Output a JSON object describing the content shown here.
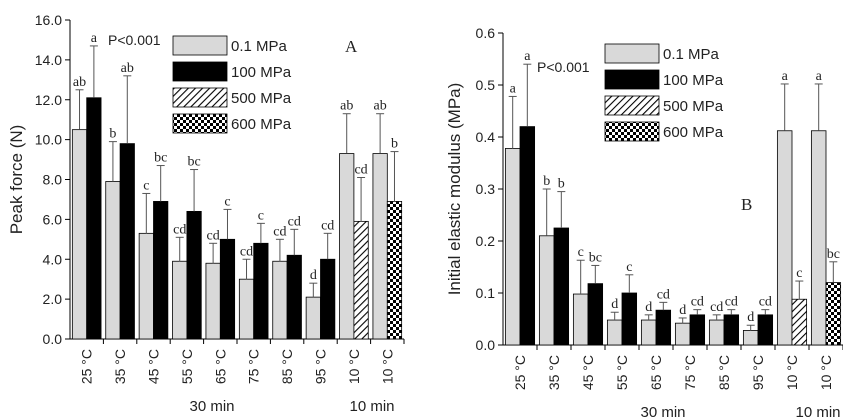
{
  "chart_data": [
    {
      "type": "bar",
      "panel_label": "A",
      "p_value": "P<0.001",
      "ylabel": "Peak force (N)",
      "ylim": [
        0,
        16
      ],
      "yticks": [
        "0.0",
        "2.0",
        "4.0",
        "6.0",
        "8.0",
        "10.0",
        "12.0",
        "14.0",
        "16.0"
      ],
      "categories": [
        "25 °C",
        "35 °C",
        "45 °C",
        "55 °C",
        "65 °C",
        "75 °C",
        "85 °C",
        "95 °C",
        "10 °C",
        "10 °C"
      ],
      "groups": [
        {
          "label": "30 min"
        },
        {
          "label": "10 min"
        }
      ],
      "legend": [
        "0.1 MPa",
        "100 MPa",
        "500 MPa",
        "600 MPa"
      ],
      "bars": [
        {
          "cat": 0,
          "series": 0,
          "value": 10.5,
          "err": 2.0,
          "sig": "ab"
        },
        {
          "cat": 0,
          "series": 1,
          "value": 12.1,
          "err": 2.6,
          "sig": "a"
        },
        {
          "cat": 1,
          "series": 0,
          "value": 7.9,
          "err": 2.0,
          "sig": "b"
        },
        {
          "cat": 1,
          "series": 1,
          "value": 9.8,
          "err": 3.4,
          "sig": "ab"
        },
        {
          "cat": 2,
          "series": 0,
          "value": 5.3,
          "err": 2.0,
          "sig": "c"
        },
        {
          "cat": 2,
          "series": 1,
          "value": 6.9,
          "err": 1.8,
          "sig": "bc"
        },
        {
          "cat": 3,
          "series": 0,
          "value": 3.9,
          "err": 1.2,
          "sig": "cd"
        },
        {
          "cat": 3,
          "series": 1,
          "value": 6.4,
          "err": 2.1,
          "sig": "bc"
        },
        {
          "cat": 4,
          "series": 0,
          "value": 3.8,
          "err": 1.0,
          "sig": "cd"
        },
        {
          "cat": 4,
          "series": 1,
          "value": 5.0,
          "err": 1.5,
          "sig": "c"
        },
        {
          "cat": 5,
          "series": 0,
          "value": 3.0,
          "err": 1.0,
          "sig": "cd"
        },
        {
          "cat": 5,
          "series": 1,
          "value": 4.8,
          "err": 1.0,
          "sig": "c"
        },
        {
          "cat": 6,
          "series": 0,
          "value": 3.9,
          "err": 1.1,
          "sig": "cd"
        },
        {
          "cat": 6,
          "series": 1,
          "value": 4.2,
          "err": 1.3,
          "sig": "cd"
        },
        {
          "cat": 7,
          "series": 0,
          "value": 2.1,
          "err": 0.7,
          "sig": "d"
        },
        {
          "cat": 7,
          "series": 1,
          "value": 4.0,
          "err": 1.3,
          "sig": "cd"
        },
        {
          "cat": 8,
          "series": 0,
          "value": 9.3,
          "err": 2.0,
          "sig": "ab"
        },
        {
          "cat": 8,
          "series": 2,
          "value": 5.9,
          "err": 2.2,
          "sig": "cd"
        },
        {
          "cat": 9,
          "series": 0,
          "value": 9.3,
          "err": 2.0,
          "sig": "ab"
        },
        {
          "cat": 9,
          "series": 3,
          "value": 6.9,
          "err": 2.5,
          "sig": "b"
        }
      ]
    },
    {
      "type": "bar",
      "panel_label": "B",
      "p_value": "P<0.001",
      "ylabel": "Initial elastic modulus (MPa)",
      "ylim": [
        0,
        0.6
      ],
      "yticks": [
        "0.0",
        "0.1",
        "0.2",
        "0.3",
        "0.4",
        "0.5",
        "0.6"
      ],
      "categories": [
        "25 °C",
        "35 °C",
        "45 °C",
        "55 °C",
        "65 °C",
        "75 °C",
        "85 °C",
        "95 °C",
        "10 °C",
        "10 °C"
      ],
      "groups": [
        {
          "label": "30 min"
        },
        {
          "label": "10 min"
        }
      ],
      "legend": [
        "0.1 MPa",
        "100 MPa",
        "500 MPa",
        "600 MPa"
      ],
      "bars": [
        {
          "cat": 0,
          "series": 0,
          "value": 0.378,
          "err": 0.1,
          "sig": "a"
        },
        {
          "cat": 0,
          "series": 1,
          "value": 0.42,
          "err": 0.12,
          "sig": "a"
        },
        {
          "cat": 1,
          "series": 0,
          "value": 0.21,
          "err": 0.09,
          "sig": "b"
        },
        {
          "cat": 1,
          "series": 1,
          "value": 0.225,
          "err": 0.07,
          "sig": "b"
        },
        {
          "cat": 2,
          "series": 0,
          "value": 0.098,
          "err": 0.065,
          "sig": "c"
        },
        {
          "cat": 2,
          "series": 1,
          "value": 0.118,
          "err": 0.035,
          "sig": "bc"
        },
        {
          "cat": 3,
          "series": 0,
          "value": 0.048,
          "err": 0.015,
          "sig": "d"
        },
        {
          "cat": 3,
          "series": 1,
          "value": 0.1,
          "err": 0.035,
          "sig": "c"
        },
        {
          "cat": 4,
          "series": 0,
          "value": 0.048,
          "err": 0.01,
          "sig": "d"
        },
        {
          "cat": 4,
          "series": 1,
          "value": 0.067,
          "err": 0.015,
          "sig": "cd"
        },
        {
          "cat": 5,
          "series": 0,
          "value": 0.042,
          "err": 0.01,
          "sig": "d"
        },
        {
          "cat": 5,
          "series": 1,
          "value": 0.058,
          "err": 0.01,
          "sig": "cd"
        },
        {
          "cat": 6,
          "series": 0,
          "value": 0.048,
          "err": 0.01,
          "sig": "cd"
        },
        {
          "cat": 6,
          "series": 1,
          "value": 0.058,
          "err": 0.01,
          "sig": "cd"
        },
        {
          "cat": 7,
          "series": 0,
          "value": 0.028,
          "err": 0.01,
          "sig": "d"
        },
        {
          "cat": 7,
          "series": 1,
          "value": 0.058,
          "err": 0.01,
          "sig": "cd"
        },
        {
          "cat": 8,
          "series": 0,
          "value": 0.412,
          "err": 0.09,
          "sig": "a"
        },
        {
          "cat": 8,
          "series": 2,
          "value": 0.088,
          "err": 0.035,
          "sig": "c"
        },
        {
          "cat": 9,
          "series": 0,
          "value": 0.412,
          "err": 0.09,
          "sig": "a"
        },
        {
          "cat": 9,
          "series": 3,
          "value": 0.12,
          "err": 0.04,
          "sig": "bc"
        }
      ]
    }
  ]
}
